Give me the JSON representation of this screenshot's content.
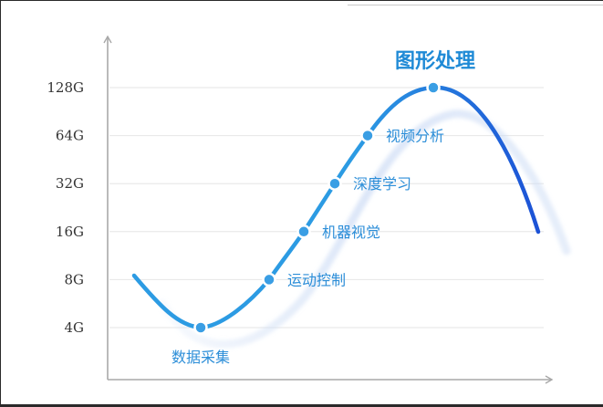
{
  "chart_data": {
    "type": "line",
    "title": "",
    "xlabel": "",
    "ylabel": "",
    "y_scale": "log2",
    "y_ticks": [
      "4G",
      "8G",
      "16G",
      "32G",
      "64G",
      "128G"
    ],
    "grid": true,
    "series": [
      {
        "points": [
          {
            "label": "数据采集",
            "value": "4G"
          },
          {
            "label": "运动控制",
            "value": "8G"
          },
          {
            "label": "机器视觉",
            "value": "16G"
          },
          {
            "label": "深度学习",
            "value": "32G"
          },
          {
            "label": "视频分析",
            "value": "64G"
          },
          {
            "label": "图形处理",
            "value": "128G"
          }
        ]
      }
    ],
    "colors": {
      "curve_start": "#2c9be3",
      "curve_end": "#1c52d6",
      "shadow": "#cddcf5",
      "marker_fill": "#3a9ee4",
      "label": "#2c8ed8",
      "peak_label": "#1f8ad6",
      "grid": "#e6e6e6",
      "axis": "#a8a8a8"
    }
  }
}
